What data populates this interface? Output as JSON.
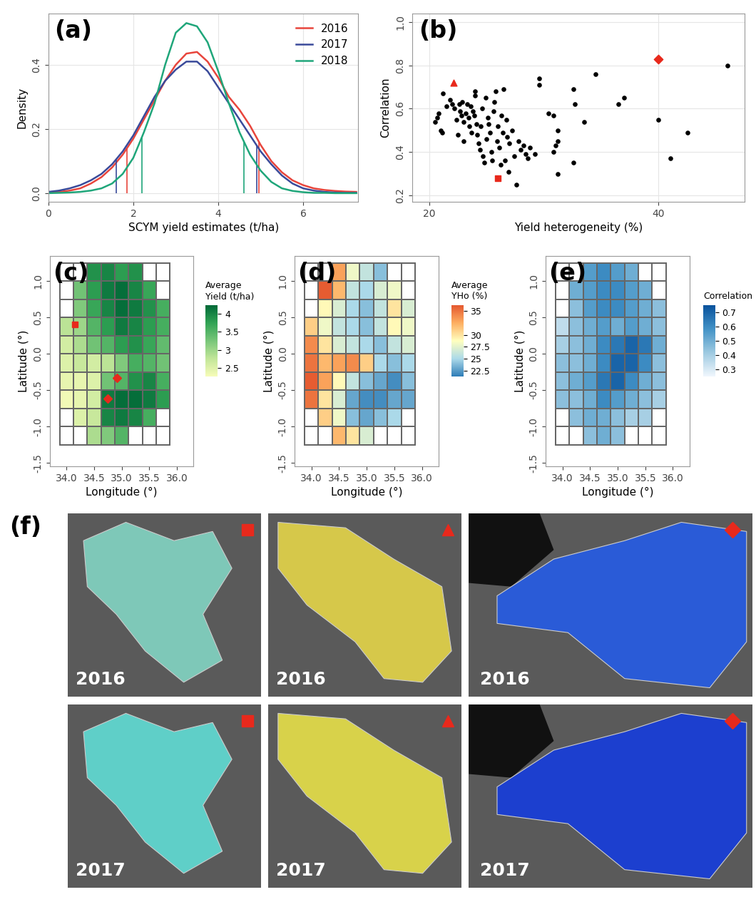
{
  "chart_data": [
    {
      "type": "line",
      "title": "(a)",
      "x_label": "SCYM yield estimates (t/ha)",
      "y_label": "Density",
      "x": [
        0,
        0.25,
        0.5,
        0.75,
        1.0,
        1.25,
        1.5,
        1.75,
        2.0,
        2.25,
        2.5,
        2.75,
        3.0,
        3.25,
        3.5,
        3.75,
        4.0,
        4.25,
        4.5,
        4.75,
        5.0,
        5.25,
        5.5,
        5.75,
        6.0,
        6.25,
        6.5,
        6.75,
        7.0,
        7.25
      ],
      "series": [
        {
          "name": "2016",
          "color": "#e8453c",
          "quantiles": [
            1.85,
            4.95
          ],
          "values": [
            0.002,
            0.004,
            0.008,
            0.015,
            0.03,
            0.05,
            0.08,
            0.12,
            0.17,
            0.23,
            0.29,
            0.35,
            0.4,
            0.435,
            0.44,
            0.41,
            0.36,
            0.3,
            0.26,
            0.21,
            0.15,
            0.1,
            0.065,
            0.04,
            0.025,
            0.015,
            0.01,
            0.007,
            0.005,
            0.004
          ]
        },
        {
          "name": "2017",
          "color": "#3a4a9a",
          "quantiles": [
            1.6,
            4.9
          ],
          "values": [
            0.004,
            0.008,
            0.015,
            0.025,
            0.04,
            0.06,
            0.09,
            0.13,
            0.18,
            0.24,
            0.3,
            0.35,
            0.385,
            0.41,
            0.41,
            0.38,
            0.33,
            0.28,
            0.23,
            0.18,
            0.13,
            0.09,
            0.055,
            0.03,
            0.015,
            0.008,
            0.004,
            0.002,
            0.001,
            0.001
          ]
        },
        {
          "name": "2018",
          "color": "#1fa67a",
          "quantiles": [
            2.2,
            4.6
          ],
          "values": [
            0.0,
            0.001,
            0.002,
            0.004,
            0.008,
            0.015,
            0.03,
            0.06,
            0.11,
            0.19,
            0.28,
            0.4,
            0.5,
            0.53,
            0.52,
            0.47,
            0.38,
            0.28,
            0.19,
            0.12,
            0.07,
            0.035,
            0.015,
            0.007,
            0.003,
            0.001,
            0.001,
            0.0,
            0.0,
            0.0
          ]
        }
      ],
      "xlim": [
        0,
        7.3
      ],
      "xticks": [
        0,
        2,
        4,
        6
      ],
      "ylim": [
        -0.027,
        0.56
      ],
      "yticks": [
        0.0,
        0.2,
        0.4
      ],
      "grid": true,
      "legend": "upper right"
    },
    {
      "type": "scatter",
      "title": "(b)",
      "x_label": "Yield heterogeneity (%)",
      "y_label": "Correlation",
      "series": [
        {
          "color": "#000000",
          "marker": "circle",
          "x": [
            20.5,
            20.7,
            20.8,
            21.0,
            21.1,
            21.2,
            21.5,
            21.8,
            22.0,
            22.2,
            22.4,
            22.5,
            22.6,
            22.7,
            22.8,
            22.9,
            23.0,
            23.0,
            23.2,
            23.3,
            23.4,
            23.5,
            23.6,
            23.7,
            23.8,
            23.9,
            24.0,
            24.0,
            24.1,
            24.2,
            24.3,
            24.4,
            24.5,
            24.6,
            24.7,
            24.8,
            24.9,
            25.0,
            25.1,
            25.2,
            25.3,
            25.4,
            25.5,
            25.6,
            25.7,
            25.8,
            25.9,
            26.0,
            26.1,
            26.2,
            26.3,
            26.4,
            26.5,
            26.6,
            26.7,
            26.8,
            26.9,
            27.0,
            27.2,
            27.4,
            27.6,
            27.8,
            28.0,
            28.2,
            28.4,
            28.6,
            28.8,
            29.2,
            29.6,
            29.6,
            30.4,
            30.8,
            30.8,
            31.0,
            31.2,
            31.2,
            31.2,
            32.6,
            32.7,
            32.6,
            33.5,
            34.5,
            36.5,
            37.0,
            40.0,
            41.0,
            42.5,
            46.0
          ],
          "values": [
            0.54,
            0.56,
            0.58,
            0.5,
            0.49,
            0.67,
            0.61,
            0.64,
            0.62,
            0.6,
            0.55,
            0.48,
            0.62,
            0.59,
            0.57,
            0.63,
            0.54,
            0.45,
            0.58,
            0.62,
            0.56,
            0.52,
            0.61,
            0.49,
            0.59,
            0.57,
            0.68,
            0.66,
            0.53,
            0.48,
            0.44,
            0.41,
            0.52,
            0.6,
            0.38,
            0.35,
            0.65,
            0.46,
            0.56,
            0.53,
            0.49,
            0.4,
            0.36,
            0.59,
            0.63,
            0.68,
            0.45,
            0.52,
            0.42,
            0.34,
            0.57,
            0.49,
            0.69,
            0.36,
            0.55,
            0.47,
            0.31,
            0.44,
            0.5,
            0.38,
            0.25,
            0.45,
            0.41,
            0.43,
            0.39,
            0.37,
            0.42,
            0.39,
            0.74,
            0.71,
            0.58,
            0.57,
            0.4,
            0.43,
            0.5,
            0.3,
            0.45,
            0.69,
            0.62,
            0.35,
            0.54,
            0.76,
            0.62,
            0.65,
            0.55,
            0.37,
            0.49,
            0.8
          ]
        },
        {
          "color": "#e8291c",
          "marker": "triangle",
          "x": [
            22.1
          ],
          "values": [
            0.72
          ]
        },
        {
          "color": "#e8291c",
          "marker": "square",
          "x": [
            26.0
          ],
          "values": [
            0.28
          ]
        },
        {
          "color": "#e8291c",
          "marker": "diamond",
          "x": [
            40.0
          ],
          "values": [
            0.83
          ]
        }
      ],
      "xlim": [
        18.5,
        47.5
      ],
      "xticks": [
        20,
        40
      ],
      "ylim": [
        0.17,
        1.04
      ],
      "yticks": [
        0.2,
        0.4,
        0.6,
        0.8,
        1.0
      ],
      "grid": true
    },
    {
      "type": "map",
      "title": "(c)",
      "x_label": "Longitude (°)",
      "y_label": "Latitude (°)",
      "x": [
        34.0,
        34.25,
        34.5,
        34.75,
        35.0,
        35.25,
        35.5,
        35.75
      ],
      "y": [
        1.125,
        0.875,
        0.625,
        0.375,
        0.125,
        -0.125,
        -0.375,
        -0.625,
        -0.875,
        -1.125
      ],
      "cells": [
        [
          null,
          null,
          3.9,
          4.0,
          3.8,
          3.9,
          null,
          null
        ],
        [
          null,
          3.3,
          3.8,
          4.1,
          4.2,
          4.0,
          3.7,
          null
        ],
        [
          null,
          3.2,
          3.7,
          4.0,
          4.2,
          4.1,
          3.9,
          3.6
        ],
        [
          2.8,
          3.0,
          3.5,
          3.8,
          4.1,
          4.0,
          3.8,
          3.6
        ],
        [
          2.6,
          2.9,
          3.3,
          3.5,
          3.8,
          3.9,
          3.7,
          3.4
        ],
        [
          2.5,
          2.7,
          2.6,
          2.8,
          3.2,
          3.6,
          3.5,
          3.3
        ],
        [
          2.4,
          2.4,
          2.5,
          3.3,
          3.5,
          3.9,
          4.0,
          3.6
        ],
        [
          2.3,
          2.4,
          2.6,
          4.1,
          4.2,
          4.2,
          4.1,
          3.8
        ],
        [
          null,
          2.5,
          2.7,
          4.0,
          4.1,
          4.0,
          3.6,
          null
        ],
        [
          null,
          null,
          2.9,
          3.2,
          3.5,
          null,
          null,
          null
        ]
      ],
      "colorbar": {
        "title": "Average\nYield (t/ha)",
        "range": [
          2.25,
          4.25
        ],
        "ticks": [
          2.5,
          3,
          3.5,
          4
        ],
        "colors": [
          "#f7fcb9",
          "#c2e699",
          "#78c679",
          "#31a354",
          "#006837"
        ]
      },
      "markers": [
        {
          "marker": "square",
          "color": "#e8291c",
          "x": 34.15,
          "y": 0.4
        },
        {
          "marker": "diamond",
          "color": "#e8291c",
          "x": 34.92,
          "y": -0.33
        },
        {
          "marker": "diamond",
          "color": "#e8291c",
          "x": 34.75,
          "y": -0.62
        }
      ],
      "xlim": [
        33.7,
        36.3
      ],
      "xticks": [
        34.0,
        34.5,
        35.0,
        35.5,
        36.0
      ],
      "ylim": [
        -1.55,
        1.35
      ],
      "yticks": [
        -1.5,
        -1.0,
        -0.5,
        0.0,
        0.5,
        1.0
      ]
    },
    {
      "type": "map",
      "title": "(d)",
      "x_label": "Longitude (°)",
      "y_label": "Latitude (°)",
      "x": [
        34.0,
        34.25,
        34.5,
        34.75,
        35.0,
        35.25,
        35.5,
        35.75
      ],
      "y": [
        1.125,
        0.875,
        0.625,
        0.375,
        0.125,
        -0.125,
        -0.375,
        -0.625,
        -0.875,
        -1.125
      ],
      "cells": [
        [
          null,
          null,
          33,
          28,
          26,
          24,
          null,
          null
        ],
        [
          null,
          36,
          32,
          26,
          25,
          27,
          28,
          null
        ],
        [
          null,
          29,
          27,
          25,
          24,
          26,
          30,
          27
        ],
        [
          31,
          28,
          26,
          25,
          24,
          26,
          29,
          28
        ],
        [
          34,
          30,
          27,
          26,
          25,
          24,
          26,
          27
        ],
        [
          35,
          32,
          33,
          34,
          31,
          25,
          24,
          25
        ],
        [
          36,
          33,
          29,
          26,
          24,
          23,
          22,
          24
        ],
        [
          35,
          30,
          27,
          23,
          22,
          22,
          23,
          23
        ],
        [
          null,
          31,
          28,
          24,
          23,
          24,
          25,
          null
        ],
        [
          null,
          null,
          32,
          30,
          27,
          null,
          null,
          null
        ]
      ],
      "colorbar": {
        "title": "Average\nYHo (%)",
        "range": [
          21.25,
          36.25
        ],
        "ticks": [
          22.5,
          25,
          27.5,
          30,
          35
        ],
        "colors": [
          "#2c7bb6",
          "#abd9e9",
          "#ffffbf",
          "#fdae61",
          "#e4572e"
        ]
      },
      "xlim": [
        33.7,
        36.3
      ],
      "xticks": [
        34.0,
        34.5,
        35.0,
        35.5,
        36.0
      ],
      "ylim": [
        -1.55,
        1.35
      ],
      "yticks": [
        -1.5,
        -1.0,
        -0.5,
        0.0,
        0.5,
        1.0
      ]
    },
    {
      "type": "map",
      "title": "(e)",
      "x_label": "Longitude (°)",
      "y_label": "Latitude (°)",
      "x": [
        34.0,
        34.25,
        34.5,
        34.75,
        35.0,
        35.25,
        35.5,
        35.75
      ],
      "y": [
        1.125,
        0.875,
        0.625,
        0.375,
        0.125,
        -0.125,
        -0.375,
        -0.625,
        -0.875,
        -1.125
      ],
      "cells": [
        [
          null,
          null,
          0.55,
          0.6,
          0.55,
          0.5,
          null,
          null
        ],
        [
          null,
          0.5,
          0.55,
          0.6,
          0.6,
          0.55,
          0.5,
          null
        ],
        [
          null,
          0.45,
          0.55,
          0.6,
          0.6,
          0.55,
          0.5,
          0.45
        ],
        [
          0.35,
          0.45,
          0.5,
          0.55,
          0.5,
          0.55,
          0.5,
          0.45
        ],
        [
          0.4,
          0.45,
          0.5,
          0.6,
          0.65,
          0.7,
          0.65,
          0.5
        ],
        [
          0.45,
          0.45,
          0.5,
          0.6,
          0.7,
          0.7,
          0.6,
          0.45
        ],
        [
          0.45,
          0.5,
          0.55,
          0.65,
          0.7,
          0.6,
          0.5,
          0.45
        ],
        [
          0.45,
          0.45,
          0.5,
          0.6,
          0.55,
          0.5,
          0.45,
          0.4
        ],
        [
          null,
          0.45,
          0.5,
          0.5,
          0.45,
          0.4,
          0.4,
          null
        ],
        [
          null,
          null,
          0.45,
          0.5,
          0.45,
          null,
          null,
          null
        ]
      ],
      "colorbar": {
        "title": "Correlation",
        "range": [
          0.25,
          0.75
        ],
        "ticks": [
          0.3,
          0.4,
          0.5,
          0.6,
          0.7
        ],
        "colors": [
          "#f1f7fd",
          "#9ecae1",
          "#4292c6",
          "#08519c"
        ]
      },
      "xlim": [
        33.7,
        36.3
      ],
      "xticks": [
        34.0,
        34.5,
        35.0,
        35.5,
        36.0
      ],
      "ylim": [
        -1.55,
        1.35
      ],
      "yticks": [
        -1.5,
        -1.0,
        -0.5,
        0.0,
        0.5,
        1.0
      ]
    }
  ],
  "image_panels": {
    "title": "(f)",
    "panels": [
      {
        "year": "2016",
        "marker": "square",
        "color": "#7ec8b8"
      },
      {
        "year": "2016",
        "marker": "triangle",
        "color": "#d6c84a"
      },
      {
        "year": "2016",
        "marker": "diamond",
        "color": "#2a5bd7"
      },
      {
        "year": "2017",
        "marker": "square",
        "color": "#5fcfc8"
      },
      {
        "year": "2017",
        "marker": "triangle",
        "color": "#d8d24a"
      },
      {
        "year": "2017",
        "marker": "diamond",
        "color": "#1c3fcf"
      }
    ],
    "marker_color": "#e8291c"
  }
}
